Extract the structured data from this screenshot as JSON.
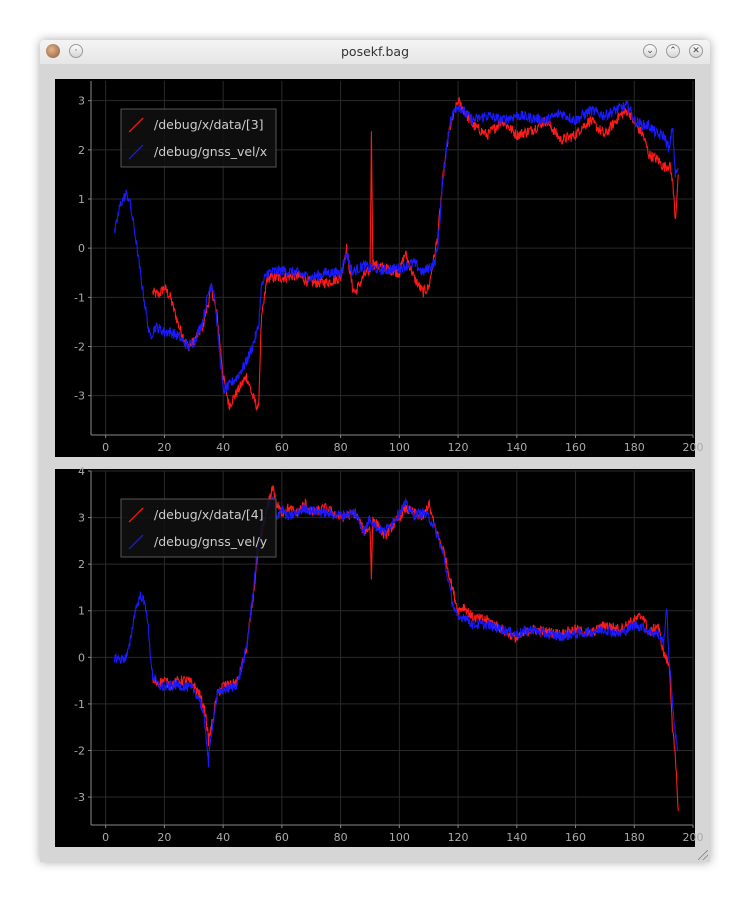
{
  "window": {
    "title": "posekf.bag",
    "icons": [
      "app-icon",
      "menu-icon",
      "minimize-icon",
      "maximize-icon",
      "close-icon"
    ]
  },
  "colors": {
    "series_red": "#ff1a1a",
    "series_blue": "#1a1aff",
    "grid": "#2a2a2a",
    "tick": "#aaaaaa",
    "legend_text": "#cccccc"
  },
  "chart_data": [
    {
      "type": "line",
      "xlim": [
        -5,
        200
      ],
      "ylim": [
        -3.8,
        3.4
      ],
      "xticks": [
        0,
        20,
        40,
        60,
        80,
        100,
        120,
        140,
        160,
        180,
        200
      ],
      "yticks": [
        -3,
        -2,
        -1,
        0,
        1,
        2,
        3
      ],
      "grid": true,
      "legend_position": "top-left",
      "series": [
        {
          "name": "/debug/x/data/[3]",
          "color": "#ff1a1a",
          "x": [
            16,
            18,
            20,
            22,
            25,
            28,
            30,
            33,
            35,
            36,
            38,
            40,
            42,
            45,
            48,
            50,
            52,
            53,
            55,
            60,
            65,
            70,
            75,
            80,
            82,
            84,
            85,
            88,
            90,
            90.5,
            91,
            92,
            95,
            100,
            102,
            105,
            108,
            110,
            113,
            115,
            117,
            119,
            120,
            125,
            130,
            135,
            140,
            145,
            150,
            155,
            160,
            162,
            165,
            170,
            175,
            178,
            180,
            183,
            185,
            188,
            190,
            192,
            193,
            194,
            195
          ],
          "y": [
            -0.9,
            -0.95,
            -0.8,
            -1.0,
            -1.6,
            -2.0,
            -1.9,
            -1.6,
            -1.1,
            -0.8,
            -1.4,
            -2.6,
            -3.2,
            -2.9,
            -2.6,
            -3.0,
            -3.3,
            -1.5,
            -0.6,
            -0.6,
            -0.55,
            -0.7,
            -0.7,
            -0.6,
            0.0,
            -0.8,
            -0.9,
            -0.55,
            -0.45,
            2.3,
            -0.3,
            -0.35,
            -0.4,
            -0.5,
            -0.1,
            -0.6,
            -0.9,
            -0.8,
            0.2,
            1.5,
            2.4,
            2.8,
            3.0,
            2.5,
            2.3,
            2.6,
            2.3,
            2.4,
            2.6,
            2.2,
            2.3,
            2.45,
            2.6,
            2.3,
            2.7,
            2.8,
            2.55,
            2.3,
            1.9,
            1.8,
            1.65,
            1.7,
            1.4,
            0.6,
            1.5
          ]
        },
        {
          "name": "/debug/gnss_vel/x",
          "color": "#1a1aff",
          "x": [
            3,
            5,
            7,
            8,
            10,
            12,
            14,
            15,
            17,
            20,
            22,
            25,
            28,
            30,
            33,
            35,
            36,
            37,
            38,
            40,
            42,
            45,
            48,
            50,
            52,
            53,
            55,
            60,
            65,
            70,
            75,
            80,
            82,
            84,
            85,
            88,
            90,
            95,
            100,
            105,
            108,
            110,
            112,
            113,
            115,
            117,
            119,
            120,
            125,
            130,
            135,
            140,
            145,
            150,
            155,
            160,
            165,
            170,
            175,
            178,
            180,
            183,
            185,
            188,
            190,
            192,
            193,
            194,
            195
          ],
          "y": [
            0.3,
            0.9,
            1.1,
            1.0,
            0.3,
            -0.6,
            -1.4,
            -1.8,
            -1.6,
            -1.7,
            -1.7,
            -1.8,
            -2.0,
            -1.9,
            -1.5,
            -0.9,
            -0.7,
            -0.9,
            -1.6,
            -2.9,
            -2.8,
            -2.6,
            -2.3,
            -2.0,
            -1.6,
            -0.8,
            -0.5,
            -0.45,
            -0.5,
            -0.6,
            -0.5,
            -0.5,
            -0.1,
            -0.5,
            -0.45,
            -0.35,
            -0.4,
            -0.45,
            -0.4,
            -0.3,
            -0.5,
            -0.4,
            -0.3,
            0.0,
            1.5,
            2.5,
            2.85,
            2.9,
            2.6,
            2.7,
            2.6,
            2.7,
            2.65,
            2.6,
            2.75,
            2.6,
            2.8,
            2.7,
            2.85,
            2.9,
            2.6,
            2.5,
            2.5,
            2.3,
            2.3,
            2.0,
            2.5,
            1.5,
            1.6
          ]
        }
      ]
    },
    {
      "type": "line",
      "xlim": [
        -5,
        200
      ],
      "ylim": [
        -3.6,
        4.0
      ],
      "xticks": [
        0,
        20,
        40,
        60,
        80,
        100,
        120,
        140,
        160,
        180,
        200
      ],
      "yticks": [
        -3,
        -2,
        -1,
        0,
        1,
        2,
        3,
        4
      ],
      "grid": true,
      "legend_position": "top-left",
      "series": [
        {
          "name": "/debug/x/data/[4]",
          "color": "#ff1a1a",
          "x": [
            16,
            18,
            20,
            22,
            25,
            28,
            30,
            32,
            34,
            35,
            36,
            38,
            40,
            43,
            45,
            48,
            50,
            52,
            55,
            57,
            58,
            60,
            62,
            65,
            68,
            70,
            75,
            80,
            85,
            88,
            90,
            90.5,
            91,
            92,
            95,
            100,
            102,
            105,
            108,
            110,
            112,
            115,
            118,
            120,
            122,
            125,
            130,
            135,
            140,
            145,
            150,
            155,
            160,
            165,
            170,
            175,
            180,
            183,
            185,
            188,
            190,
            192,
            193,
            194,
            195
          ],
          "y": [
            -0.5,
            -0.55,
            -0.5,
            -0.6,
            -0.5,
            -0.5,
            -0.6,
            -0.8,
            -1.2,
            -1.8,
            -1.5,
            -0.8,
            -0.6,
            -0.6,
            -0.5,
            0.2,
            1.2,
            2.3,
            3.2,
            3.7,
            3.3,
            3.1,
            3.2,
            3.1,
            3.3,
            3.1,
            3.2,
            3.0,
            3.1,
            2.7,
            2.8,
            1.7,
            3.0,
            2.9,
            2.6,
            3.0,
            3.2,
            3.1,
            3.0,
            3.3,
            2.8,
            2.3,
            1.5,
            1.0,
            1.1,
            0.85,
            0.8,
            0.6,
            0.4,
            0.6,
            0.55,
            0.5,
            0.6,
            0.5,
            0.7,
            0.6,
            0.8,
            0.9,
            0.5,
            0.7,
            0.1,
            -0.2,
            -1.5,
            -2.2,
            -3.3
          ]
        },
        {
          "name": "/debug/gnss_vel/y",
          "color": "#1a1aff",
          "x": [
            3,
            5,
            7,
            8,
            10,
            12,
            14,
            15,
            16,
            18,
            20,
            22,
            25,
            28,
            30,
            32,
            34,
            35,
            36,
            38,
            40,
            43,
            45,
            48,
            50,
            52,
            55,
            57,
            58,
            60,
            62,
            65,
            68,
            70,
            75,
            80,
            85,
            88,
            90,
            92,
            95,
            100,
            102,
            105,
            108,
            110,
            112,
            115,
            118,
            120,
            122,
            125,
            130,
            135,
            140,
            145,
            150,
            155,
            160,
            165,
            170,
            175,
            180,
            183,
            185,
            188,
            190,
            191,
            192,
            193,
            194,
            195
          ],
          "y": [
            0.0,
            -0.05,
            0.0,
            0.2,
            1.0,
            1.35,
            1.0,
            0.2,
            -0.4,
            -0.6,
            -0.65,
            -0.6,
            -0.6,
            -0.65,
            -0.7,
            -0.9,
            -1.5,
            -2.3,
            -1.6,
            -0.8,
            -0.7,
            -0.65,
            -0.55,
            0.2,
            1.3,
            2.5,
            3.2,
            3.4,
            3.0,
            3.2,
            3.0,
            3.1,
            3.2,
            3.15,
            3.1,
            3.05,
            3.1,
            2.7,
            3.0,
            2.8,
            2.7,
            3.1,
            3.3,
            3.05,
            3.1,
            3.0,
            2.8,
            2.2,
            1.2,
            0.8,
            0.9,
            0.7,
            0.7,
            0.6,
            0.5,
            0.6,
            0.5,
            0.45,
            0.5,
            0.55,
            0.6,
            0.5,
            0.7,
            0.65,
            0.55,
            0.5,
            0.3,
            1.1,
            -0.2,
            -0.9,
            -1.7,
            -2.0
          ]
        }
      ]
    }
  ]
}
